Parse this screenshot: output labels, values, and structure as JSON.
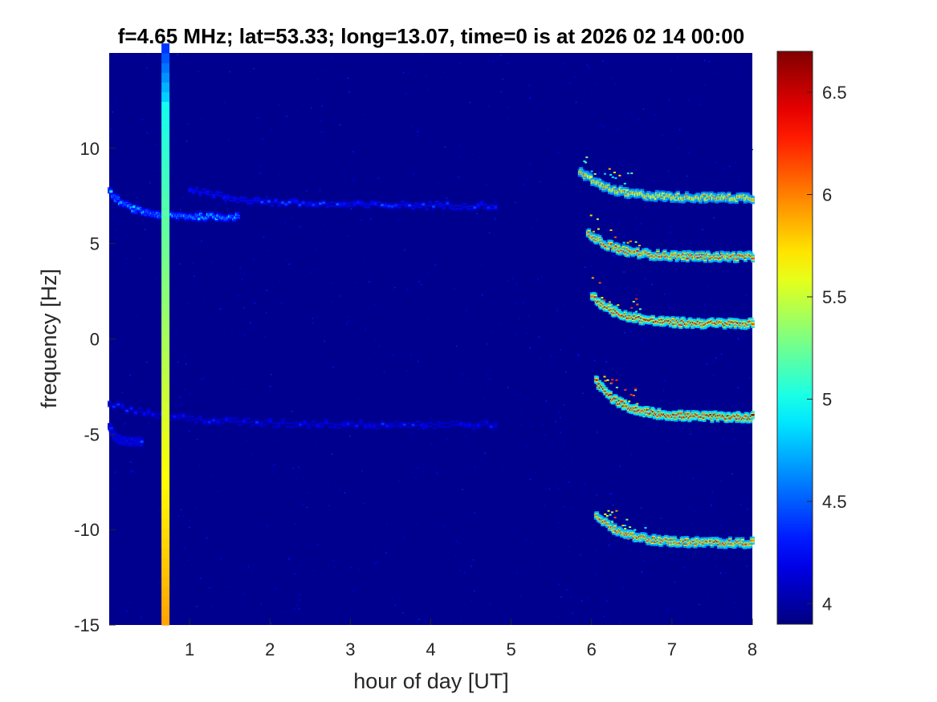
{
  "chart_data": {
    "type": "heatmap",
    "title": "f=4.65 MHz;  lat=53.33; long=13.07, time=0 is at 2026 02 14 00:00",
    "xlabel": "hour of day [UT]",
    "ylabel": "frequency [Hz]",
    "xlim": [
      0,
      8
    ],
    "ylim": [
      -15,
      15
    ],
    "xticks": [
      1,
      2,
      3,
      4,
      5,
      6,
      7,
      8
    ],
    "yticks": [
      -15,
      -10,
      -5,
      0,
      5,
      10
    ],
    "colormap": "jet",
    "background_color": "#00008f",
    "colorbar": {
      "clim": [
        3.9,
        6.7
      ],
      "ticks": [
        4,
        4.5,
        5,
        5.5,
        6,
        6.5
      ]
    },
    "features": {
      "broadband_stripe": {
        "x": [
          0.65,
          0.75
        ],
        "value_range": [
          4.9,
          5.9
        ]
      },
      "doppler_traces": [
        {
          "x_start": 5.85,
          "x_end": 8.0,
          "y_start": 8.8,
          "y_end": 7.4,
          "peak_value": 6.1
        },
        {
          "x_start": 5.95,
          "x_end": 8.0,
          "y_start": 5.6,
          "y_end": 4.3,
          "peak_value": 6.4
        },
        {
          "x_start": 6.0,
          "x_end": 8.0,
          "y_start": 2.3,
          "y_end": 0.8,
          "peak_value": 6.6
        },
        {
          "x_start": 6.05,
          "x_end": 8.0,
          "y_start": -2.2,
          "y_end": -4.1,
          "peak_value": 6.7
        },
        {
          "x_start": 6.05,
          "x_end": 8.0,
          "y_start": -9.2,
          "y_end": -10.7,
          "peak_value": 6.4
        }
      ],
      "faint_traces": [
        {
          "x_start": 0.0,
          "x_end": 1.6,
          "y_start": 7.7,
          "y_end": 6.4,
          "peak_value": 4.9
        },
        {
          "x_start": 1.0,
          "x_end": 4.8,
          "y_start": 7.9,
          "y_end": 7.0,
          "peak_value": 4.5
        },
        {
          "x_start": 0.0,
          "x_end": 4.8,
          "y_start": -3.4,
          "y_end": -4.5,
          "peak_value": 4.4
        },
        {
          "x_start": 0.0,
          "x_end": 0.4,
          "y_start": -4.6,
          "y_end": -5.4,
          "peak_value": 4.5
        }
      ]
    }
  }
}
